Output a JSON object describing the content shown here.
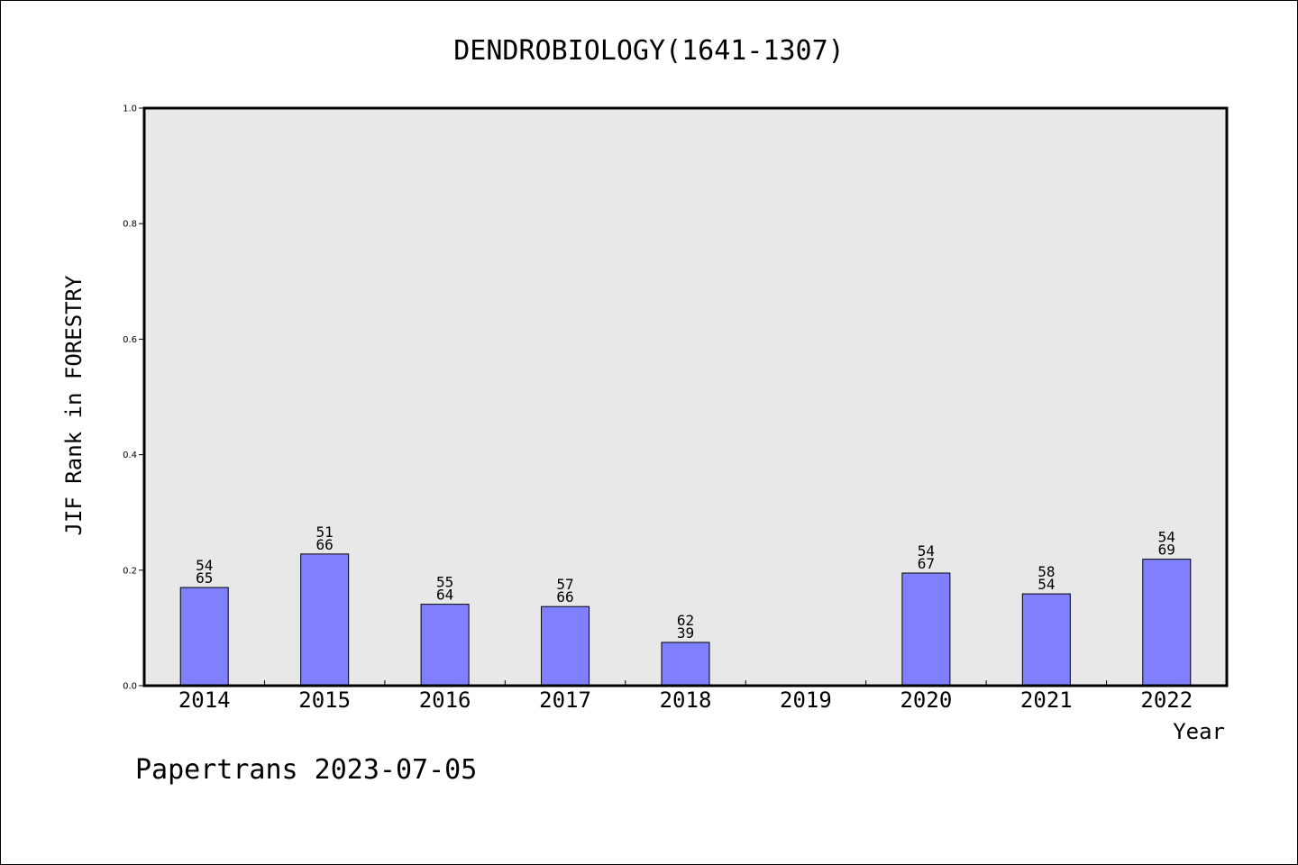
{
  "chart_data": {
    "type": "bar",
    "title": "DENDROBIOLOGY(1641-1307)",
    "xlabel": "Year",
    "ylabel": "JIF Rank in FORESTRY",
    "categories": [
      "2014",
      "2015",
      "2016",
      "2017",
      "2018",
      "2019",
      "2020",
      "2021",
      "2022"
    ],
    "values": [
      0.17,
      0.228,
      0.141,
      0.137,
      0.075,
      null,
      0.195,
      0.159,
      0.219
    ],
    "bar_labels": [
      [
        "54",
        "65"
      ],
      [
        "51",
        "66"
      ],
      [
        "55",
        "64"
      ],
      [
        "57",
        "66"
      ],
      [
        "62",
        "39"
      ],
      null,
      [
        "54",
        "67"
      ],
      [
        "58",
        "54"
      ],
      [
        "54",
        "69"
      ]
    ],
    "ylim": [
      0,
      1.0
    ],
    "yticks": [
      "0.0",
      "0.2",
      "0.4",
      "0.6",
      "0.8",
      "1.0"
    ],
    "yticks_values": [
      0,
      0.2,
      0.4,
      0.6,
      0.8,
      1.0
    ],
    "grid": false,
    "legend": "none",
    "colors": {
      "bar": "#8080ff",
      "plot_background": "#e8e8e8",
      "axis": "#000000"
    }
  },
  "footer": "Papertrans 2023-07-05"
}
